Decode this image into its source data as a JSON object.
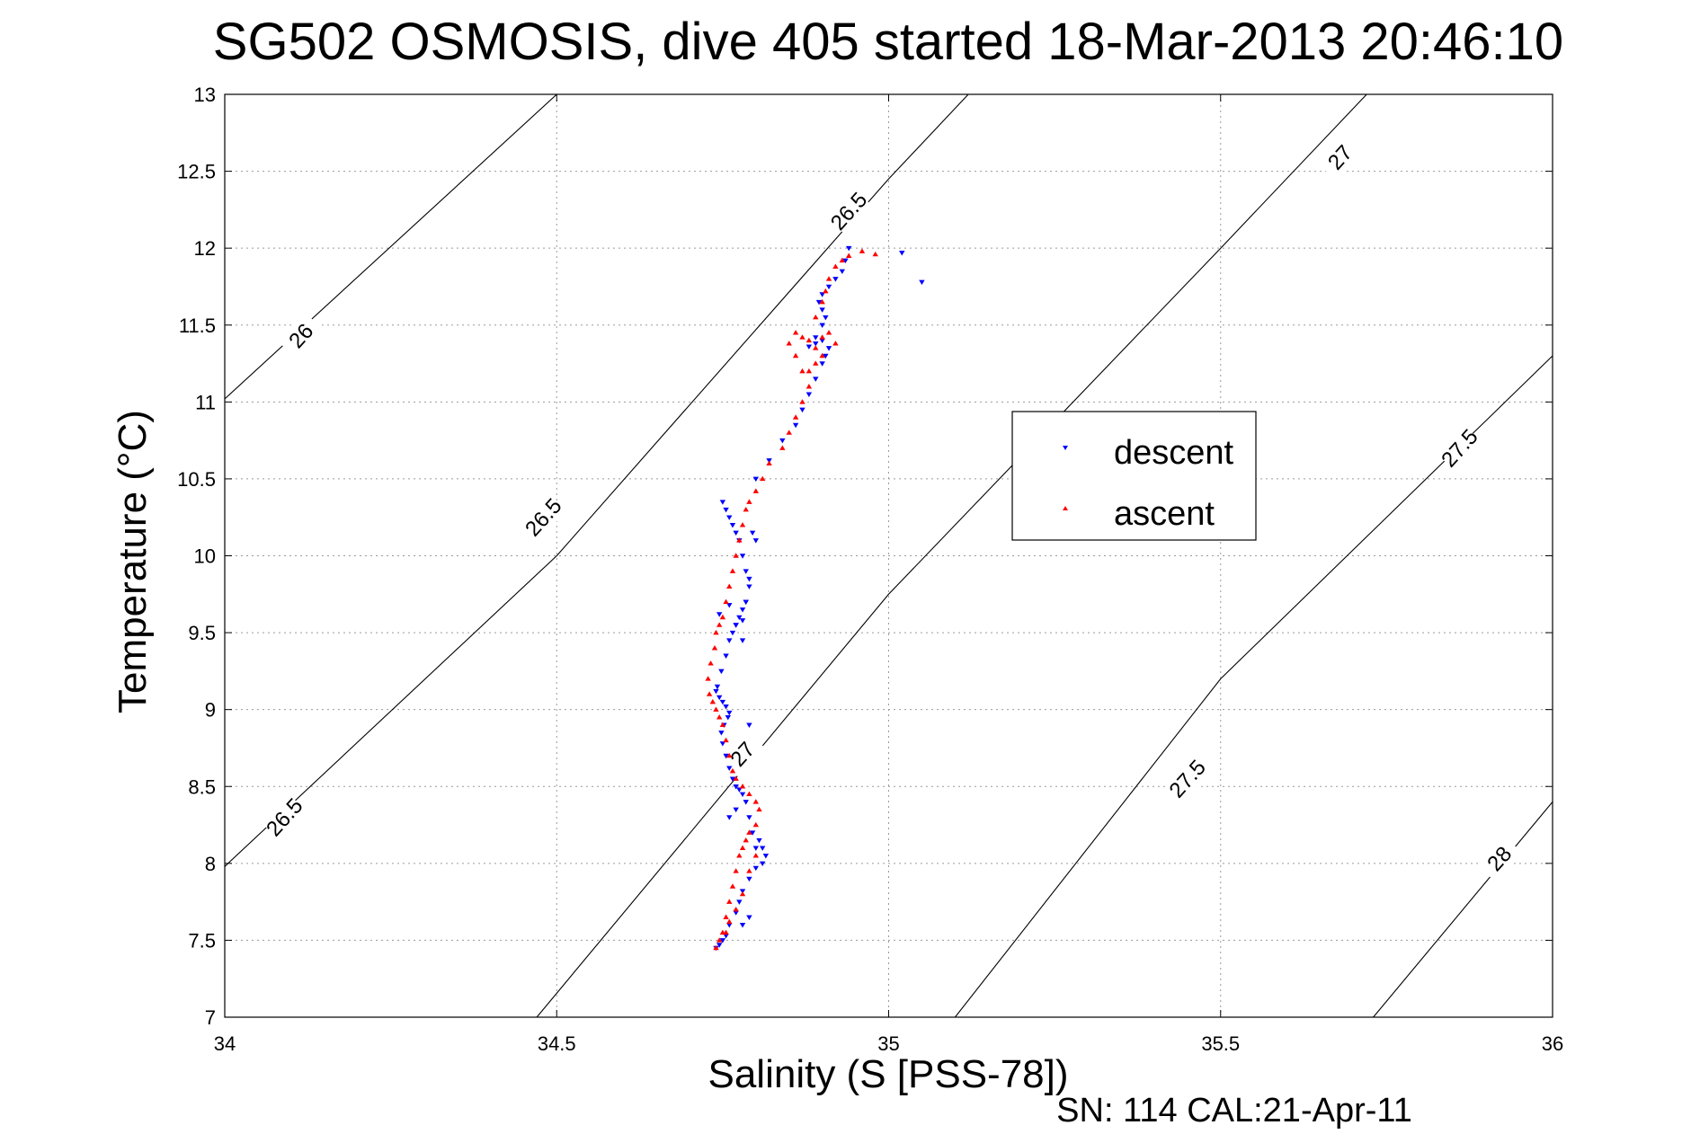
{
  "title": "SG502 OSMOSIS, dive 405 started 18-Mar-2013 20:46:10",
  "footer": "SN: 114  CAL:21-Apr-11",
  "chart_data": {
    "type": "scatter",
    "title": "SG502 OSMOSIS, dive 405 started 18-Mar-2013 20:46:10",
    "xlabel": "Salinity (S [PSS-78])",
    "ylabel": "Temperature (°C)",
    "xlim": [
      34,
      36
    ],
    "ylim": [
      7,
      13
    ],
    "xticks": [
      "34",
      "34.5",
      "35",
      "35.5",
      "36"
    ],
    "yticks": [
      "7",
      "7.5",
      "8",
      "8.5",
      "9",
      "9.5",
      "10",
      "10.5",
      "11",
      "11.5",
      "12",
      "12.5",
      "13"
    ],
    "grid": true,
    "legend_position": "right-center",
    "contours": [
      {
        "label": "26",
        "points": [
          [
            34.0,
            11.02
          ],
          [
            34.5,
            13.0
          ]
        ],
        "label_at": [
          34.115,
          11.43
        ]
      },
      {
        "label": "26.5",
        "points": [
          [
            34.0,
            7.98
          ],
          [
            34.5,
            10.0
          ],
          [
            35.0,
            12.45
          ],
          [
            35.12,
            13.0
          ]
        ],
        "label_at": [
          34.48,
          10.25
        ],
        "label_at2": [
          34.09,
          8.3
        ],
        "label_at3": [
          34.94,
          12.24
        ]
      },
      {
        "label": "27",
        "points": [
          [
            34.47,
            7.0
          ],
          [
            35.0,
            9.75
          ],
          [
            35.5,
            12.0
          ],
          [
            35.72,
            13.0
          ]
        ],
        "label_at": [
          34.78,
          8.71
        ],
        "label_at2": [
          35.68,
          12.59
        ]
      },
      {
        "label": "27.5",
        "points": [
          [
            35.1,
            7.0
          ],
          [
            35.5,
            9.2
          ],
          [
            36.0,
            11.3
          ]
        ],
        "label_at": [
          35.45,
          8.55
        ],
        "label_at2": [
          35.86,
          10.7
        ]
      },
      {
        "label": "28",
        "points": [
          [
            35.73,
            7.0
          ],
          [
            36.0,
            8.4
          ]
        ],
        "label_at": [
          35.92,
          8.03
        ]
      }
    ],
    "series": [
      {
        "name": "descent",
        "color": "#0000ff",
        "marker": "triangle-down",
        "x": [
          34.74,
          34.745,
          34.75,
          34.755,
          34.76,
          34.77,
          34.775,
          34.78,
          34.79,
          34.8,
          34.81,
          34.815,
          34.81,
          34.805,
          34.8,
          34.795,
          34.79,
          34.785,
          34.78,
          34.775,
          34.77,
          34.765,
          34.76,
          34.755,
          34.75,
          34.748,
          34.752,
          34.758,
          34.76,
          34.755,
          34.75,
          34.745,
          34.74,
          34.742,
          34.748,
          34.755,
          34.76,
          34.765,
          34.77,
          34.775,
          34.78,
          34.785,
          34.79,
          34.785,
          34.78,
          34.775,
          34.77,
          34.765,
          34.76,
          34.755,
          34.75,
          34.745,
          34.76,
          34.78,
          34.8,
          34.82,
          34.84,
          34.86,
          34.87,
          34.88,
          34.89,
          34.9,
          34.905,
          34.91,
          34.9,
          34.89,
          34.88,
          34.89,
          34.9,
          34.905,
          34.9,
          34.895,
          34.9,
          34.91,
          34.92,
          34.93,
          34.935,
          34.94,
          35.02,
          35.05,
          34.77,
          34.78,
          34.785,
          34.79,
          34.8,
          34.795,
          34.79,
          34.76,
          34.77,
          34.78,
          34.79
        ],
        "y": [
          7.45,
          7.47,
          7.5,
          7.53,
          7.6,
          7.68,
          7.75,
          7.82,
          7.9,
          7.97,
          8.0,
          8.05,
          8.1,
          8.15,
          8.1,
          8.2,
          8.3,
          8.4,
          8.45,
          8.48,
          8.5,
          8.55,
          8.62,
          8.7,
          8.78,
          8.85,
          8.9,
          8.95,
          8.98,
          9.02,
          9.05,
          9.08,
          9.12,
          9.15,
          9.25,
          9.35,
          9.45,
          9.5,
          9.55,
          9.6,
          9.65,
          9.7,
          9.8,
          9.9,
          10.0,
          10.1,
          10.15,
          10.2,
          10.25,
          10.3,
          10.35,
          9.62,
          9.68,
          9.58,
          10.5,
          10.62,
          10.75,
          10.85,
          10.95,
          11.05,
          11.15,
          11.25,
          11.3,
          11.35,
          11.4,
          11.38,
          11.36,
          11.42,
          11.5,
          11.55,
          11.6,
          11.65,
          11.7,
          11.75,
          11.8,
          11.85,
          11.92,
          12.0,
          11.97,
          11.78,
          9.55,
          9.45,
          9.7,
          9.85,
          10.1,
          10.15,
          8.9,
          8.3,
          8.35,
          7.6,
          7.65
        ]
      },
      {
        "name": "ascent",
        "color": "#ff0000",
        "marker": "triangle-up",
        "x": [
          34.74,
          34.745,
          34.75,
          34.755,
          34.76,
          34.765,
          34.77,
          34.775,
          34.78,
          34.785,
          34.79,
          34.8,
          34.805,
          34.8,
          34.79,
          34.78,
          34.77,
          34.765,
          34.76,
          34.755,
          34.75,
          34.745,
          34.74,
          34.735,
          34.73,
          34.728,
          34.732,
          34.738,
          34.74,
          34.745,
          34.75,
          34.755,
          34.76,
          34.765,
          34.77,
          34.775,
          34.78,
          34.785,
          34.79,
          34.8,
          34.81,
          34.82,
          34.84,
          34.85,
          34.86,
          34.87,
          34.88,
          34.87,
          34.86,
          34.85,
          34.86,
          34.87,
          34.88,
          34.89,
          34.9,
          34.91,
          34.92,
          34.9,
          34.89,
          34.88,
          34.89,
          34.9,
          34.905,
          34.91,
          34.92,
          34.93,
          34.94,
          34.96,
          34.98,
          34.755,
          34.76,
          34.77,
          34.78,
          34.79,
          34.8
        ],
        "y": [
          7.45,
          7.5,
          7.55,
          7.65,
          7.75,
          7.85,
          7.95,
          8.05,
          8.1,
          8.15,
          8.2,
          8.25,
          8.35,
          8.4,
          8.45,
          8.5,
          8.55,
          8.6,
          8.7,
          8.8,
          8.9,
          8.95,
          9.0,
          9.05,
          9.1,
          9.2,
          9.3,
          9.4,
          9.5,
          9.55,
          9.6,
          9.7,
          9.8,
          9.9,
          10.0,
          10.1,
          10.2,
          10.3,
          10.35,
          10.42,
          10.5,
          10.6,
          10.7,
          10.8,
          10.9,
          11.0,
          11.1,
          11.2,
          11.3,
          11.38,
          11.45,
          11.42,
          11.4,
          11.35,
          11.42,
          11.45,
          11.38,
          11.3,
          11.25,
          11.2,
          11.55,
          11.65,
          11.72,
          11.8,
          11.88,
          11.92,
          11.95,
          11.98,
          11.96,
          7.55,
          7.62,
          7.7,
          7.8,
          7.95,
          8.05
        ]
      }
    ]
  }
}
